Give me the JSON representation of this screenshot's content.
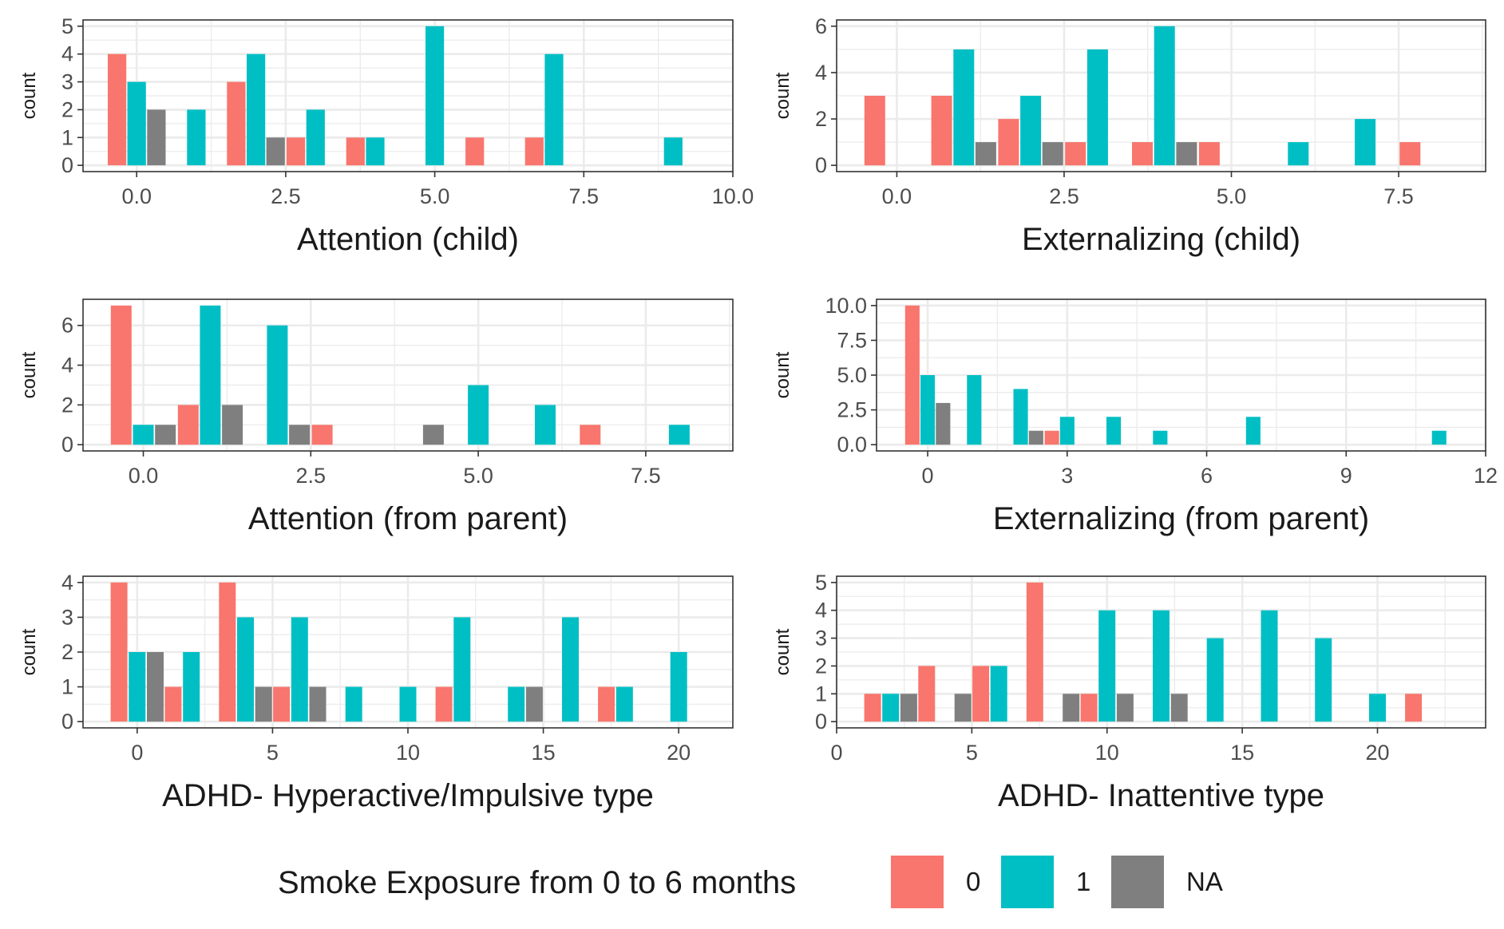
{
  "colors": {
    "0": "#F8766D",
    "1": "#00BFC4",
    "NA": "#7F7F7F"
  },
  "legend": {
    "title": "Smoke Exposure from 0 to 6 months",
    "items": [
      {
        "label": "0",
        "color": "#F8766D"
      },
      {
        "label": "1",
        "color": "#00BFC4"
      },
      {
        "label": "NA",
        "color": "#7F7F7F"
      }
    ]
  },
  "chart_data": [
    {
      "type": "bar",
      "stacking": "dodge",
      "xlabel": "Attention (child)",
      "ylabel": "count",
      "xlim": [
        -0.9,
        10.0
      ],
      "ylim": [
        0,
        5
      ],
      "xticks": [
        0,
        2.5,
        5,
        7.5,
        10
      ],
      "xtick_labels": [
        "0.0",
        "2.5",
        "5.0",
        "7.5",
        "10.0"
      ],
      "yticks": [
        0,
        1,
        2,
        3,
        4,
        5
      ],
      "ytick_labels": [
        "0",
        "1",
        "2",
        "3",
        "4",
        "5"
      ],
      "bin_width": 2,
      "bin_centers": [
        0,
        2,
        4,
        6,
        8
      ],
      "series": [
        {
          "name": "0",
          "values": [
            4,
            3,
            1,
            1,
            1,
            1
          ],
          "x": [
            -0.33,
            1.67,
            2.67,
            3.67,
            5.67,
            6.67
          ]
        },
        {
          "name": "1",
          "values": [
            3,
            2,
            4,
            2,
            1,
            5,
            4,
            1
          ],
          "x": [
            0,
            1,
            2,
            3,
            4,
            5,
            7,
            9
          ]
        },
        {
          "name": "NA",
          "values": [
            2,
            1
          ],
          "x": [
            0.33,
            2.33
          ]
        }
      ]
    },
    {
      "type": "bar",
      "stacking": "dodge",
      "xlabel": "Externalizing (child)",
      "ylabel": "count",
      "xlim": [
        -0.9,
        8.8
      ],
      "ylim": [
        0,
        6
      ],
      "xticks": [
        0,
        2.5,
        5,
        7.5
      ],
      "xtick_labels": [
        "0.0",
        "2.5",
        "5.0",
        "7.5"
      ],
      "yticks": [
        0,
        2,
        4,
        6
      ],
      "ytick_labels": [
        "0",
        "2",
        "4",
        "6"
      ],
      "series": [
        {
          "name": "0",
          "values": [
            3,
            3,
            2,
            1,
            1,
            1,
            1
          ],
          "x": [
            -0.33,
            0.67,
            1.67,
            2.67,
            3.67,
            4.67,
            7.67
          ]
        },
        {
          "name": "1",
          "values": [
            5,
            3,
            5,
            6,
            1,
            2
          ],
          "x": [
            1,
            2,
            3,
            4,
            6,
            7
          ]
        },
        {
          "name": "NA",
          "values": [
            1,
            1,
            1
          ],
          "x": [
            1.33,
            2.33,
            4.33
          ]
        }
      ]
    },
    {
      "type": "bar",
      "stacking": "dodge",
      "xlabel": "Attention (from parent)",
      "ylabel": "count",
      "xlim": [
        -0.9,
        8.8
      ],
      "ylim": [
        0,
        7
      ],
      "xticks": [
        0,
        2.5,
        5,
        7.5
      ],
      "xtick_labels": [
        "0.0",
        "2.5",
        "5.0",
        "7.5"
      ],
      "yticks": [
        0,
        2,
        4,
        6
      ],
      "ytick_labels": [
        "0",
        "2",
        "4",
        "6"
      ],
      "series": [
        {
          "name": "0",
          "values": [
            7,
            2,
            1,
            1
          ],
          "x": [
            -0.33,
            0.67,
            2.67,
            6.67
          ]
        },
        {
          "name": "1",
          "values": [
            1,
            7,
            6,
            3,
            2,
            1
          ],
          "x": [
            0,
            1,
            2,
            5,
            6,
            8
          ]
        },
        {
          "name": "NA",
          "values": [
            1,
            2,
            1,
            1
          ],
          "x": [
            0.33,
            1.33,
            2.33,
            4.33
          ]
        }
      ]
    },
    {
      "type": "bar",
      "stacking": "dodge",
      "xlabel": "Externalizing (from parent)",
      "ylabel": "count",
      "xlim": [
        -1.1,
        12.0
      ],
      "ylim": [
        0,
        10
      ],
      "xticks": [
        0,
        3,
        6,
        9,
        12
      ],
      "xtick_labels": [
        "0",
        "3",
        "6",
        "9",
        "12"
      ],
      "yticks": [
        0,
        2.5,
        5,
        7.5,
        10
      ],
      "ytick_labels": [
        "0.0",
        "2.5",
        "5.0",
        "7.5",
        "10.0"
      ],
      "series": [
        {
          "name": "0",
          "values": [
            10,
            1
          ],
          "x": [
            -0.33,
            2.67
          ]
        },
        {
          "name": "1",
          "values": [
            5,
            5,
            4,
            2,
            2,
            1,
            2,
            1
          ],
          "x": [
            0,
            1,
            2,
            3,
            4,
            5,
            7,
            11
          ]
        },
        {
          "name": "NA",
          "values": [
            3,
            1
          ],
          "x": [
            0.33,
            2.33
          ]
        }
      ]
    },
    {
      "type": "bar",
      "stacking": "dodge",
      "xlabel": "ADHD- Hyperactive/Impulsive type",
      "ylabel": "count",
      "xlim": [
        -2.0,
        22.0
      ],
      "ylim": [
        0,
        4
      ],
      "xticks": [
        0,
        5,
        10,
        15,
        20
      ],
      "xtick_labels": [
        "0",
        "5",
        "10",
        "15",
        "20"
      ],
      "yticks": [
        0,
        1,
        2,
        3,
        4
      ],
      "ytick_labels": [
        "0",
        "1",
        "2",
        "3",
        "4"
      ],
      "series": [
        {
          "name": "0",
          "values": [
            4,
            1,
            4,
            1,
            1,
            1
          ],
          "x": [
            -0.67,
            1.33,
            3.33,
            5.33,
            11.33,
            17.33
          ]
        },
        {
          "name": "1",
          "values": [
            2,
            2,
            3,
            3,
            1,
            1,
            3,
            1,
            3,
            1,
            2
          ],
          "x": [
            0,
            2,
            4,
            6,
            8,
            10,
            12,
            14,
            16,
            18,
            20
          ]
        },
        {
          "name": "NA",
          "values": [
            2,
            1,
            1,
            1
          ],
          "x": [
            0.67,
            4.67,
            6.67,
            14.67
          ]
        }
      ]
    },
    {
      "type": "bar",
      "stacking": "dodge",
      "xlabel": "ADHD- Inattentive type",
      "ylabel": "count",
      "xlim": [
        0,
        24.0
      ],
      "ylim": [
        0,
        5
      ],
      "xticks": [
        0,
        5,
        10,
        15,
        20
      ],
      "xtick_labels": [
        "0",
        "5",
        "10",
        "15",
        "20"
      ],
      "yticks": [
        0,
        1,
        2,
        3,
        4,
        5
      ],
      "ytick_labels": [
        "0",
        "1",
        "2",
        "3",
        "4",
        "5"
      ],
      "series": [
        {
          "name": "0",
          "values": [
            1,
            2,
            2,
            5,
            1,
            1
          ],
          "x": [
            1.33,
            3.33,
            5.33,
            7.33,
            9.33,
            21.33
          ]
        },
        {
          "name": "1",
          "values": [
            1,
            2,
            4,
            4,
            3,
            4,
            3,
            1
          ],
          "x": [
            2,
            6,
            10,
            12,
            14,
            16,
            18,
            20
          ]
        },
        {
          "name": "NA",
          "values": [
            1,
            1,
            1,
            1,
            1
          ],
          "x": [
            2.67,
            4.67,
            8.67,
            10.67,
            12.67
          ]
        }
      ]
    }
  ]
}
